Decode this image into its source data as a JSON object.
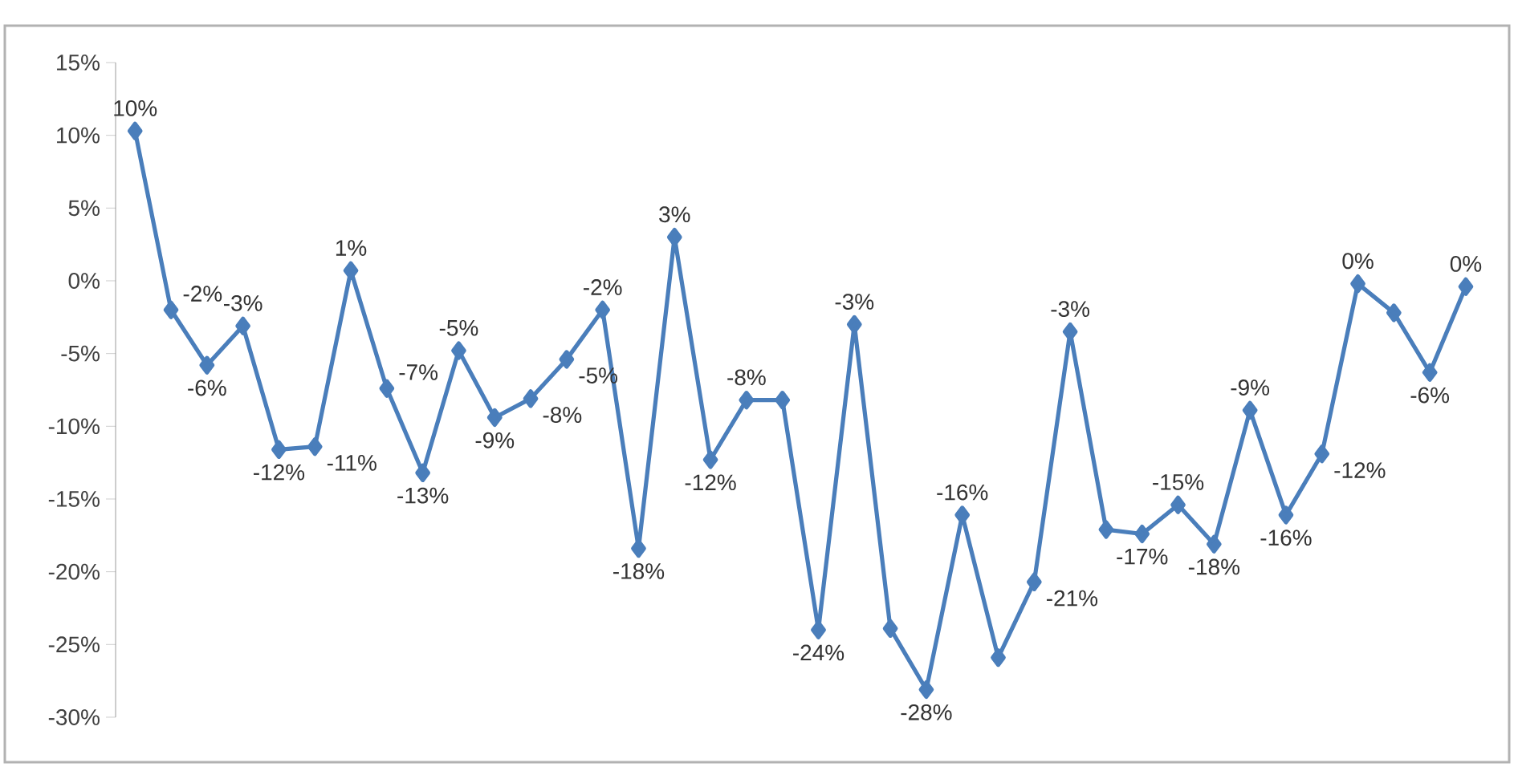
{
  "chart_data": {
    "type": "line",
    "categories": [
      null,
      null,
      null,
      null,
      null,
      null,
      null,
      null,
      null,
      null,
      null,
      null,
      null,
      null,
      null,
      null,
      null,
      null,
      null,
      null,
      null,
      null,
      null,
      null,
      null,
      null,
      null,
      null,
      null,
      null,
      null,
      null,
      null,
      null,
      null,
      null,
      null,
      null
    ],
    "values": [
      10.3,
      -2.0,
      -5.8,
      -3.1,
      -11.6,
      -11.4,
      0.7,
      -7.4,
      -13.2,
      -4.8,
      -9.4,
      -8.1,
      -5.4,
      -2.0,
      -18.4,
      3.0,
      -12.3,
      -8.2,
      -8.2,
      -24.0,
      -3.0,
      -23.9,
      -28.1,
      -16.1,
      -25.9,
      -20.7,
      -3.5,
      -17.1,
      -17.4,
      -15.4,
      -18.1,
      -8.9,
      -16.1,
      -11.9,
      -0.2,
      -2.2,
      -6.3,
      -0.4
    ],
    "value_labels": [
      "10%",
      "-2%",
      "-6%",
      "-3%",
      "-12%",
      "-11%",
      "1%",
      "-7%",
      "-13%",
      "-5%",
      "-9%",
      "-8%",
      "-5%",
      "-2%",
      "-18%",
      "3%",
      "-12%",
      "-8%",
      null,
      "-24%",
      "-3%",
      null,
      "-28%",
      "-16%",
      null,
      "-21%",
      "-3%",
      null,
      "-17%",
      "-15%",
      "-18%",
      "-9%",
      "-16%",
      "-12%",
      "0%",
      null,
      "-6%",
      "0%"
    ],
    "color": "#4a7ebb",
    "marker": "diamond",
    "line_style": "solid",
    "tick_labels": "y",
    "ylim": [
      -30,
      15
    ],
    "yticks": [
      {
        "value": -30,
        "label": "-30%"
      },
      {
        "value": -25,
        "label": "-25%"
      },
      {
        "value": -20,
        "label": "-20%"
      },
      {
        "value": -15,
        "label": "-15%"
      },
      {
        "value": -10,
        "label": "-10%"
      },
      {
        "value": -5,
        "label": "-5%"
      },
      {
        "value": 0,
        "label": "0%"
      },
      {
        "value": 5,
        "label": "5%"
      },
      {
        "value": 10,
        "label": "10%"
      },
      {
        "value": 15,
        "label": "15%"
      }
    ]
  }
}
